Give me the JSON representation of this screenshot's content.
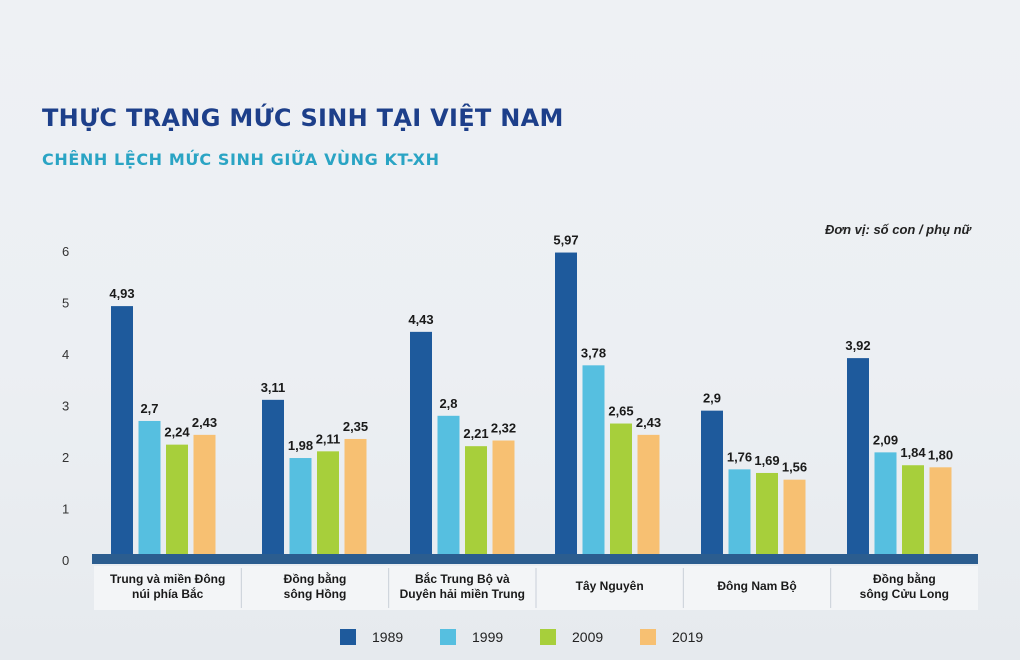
{
  "chart_data": {
    "type": "bar",
    "title": "THỰC TRẠNG MỨC SINH TẠI VIỆT NAM",
    "subtitle": "CHÊNH LỆCH MỨC SINH GIỮA VÙNG KT-XH",
    "unit_label": "Đơn vị: số con / phụ nữ",
    "ylim": [
      0,
      6
    ],
    "yticks": [
      "0",
      "1",
      "2",
      "3",
      "4",
      "5",
      "6"
    ],
    "categories": [
      [
        "Trung và miền Đông",
        "núi phía Bắc"
      ],
      [
        "Đồng bằng",
        "sông Hồng"
      ],
      [
        "Bắc Trung Bộ và",
        "Duyên hải miền Trung"
      ],
      [
        "Tây Nguyên"
      ],
      [
        "Đông Nam Bộ"
      ],
      [
        "Đồng bằng",
        "sông Cửu Long"
      ]
    ],
    "series": [
      {
        "name": "1989",
        "color": "#1e5a9c",
        "values": [
          4.93,
          3.11,
          4.43,
          5.97,
          2.9,
          3.92
        ],
        "labels": [
          "4,93",
          "3,11",
          "4,43",
          "5,97",
          "2,9",
          "3,92"
        ]
      },
      {
        "name": "1999",
        "color": "#56bfe0",
        "values": [
          2.7,
          1.98,
          2.8,
          3.78,
          1.76,
          2.09
        ],
        "labels": [
          "2,7",
          "1,98",
          "2,8",
          "3,78",
          "1,76",
          "2,09"
        ]
      },
      {
        "name": "2009",
        "color": "#a7cf3b",
        "values": [
          2.24,
          2.11,
          2.21,
          2.65,
          1.69,
          1.84
        ],
        "labels": [
          "2,24",
          "2,11",
          "2,21",
          "2,65",
          "1,69",
          "1,84"
        ]
      },
      {
        "name": "2019",
        "color": "#f7c072",
        "values": [
          2.43,
          2.35,
          2.32,
          2.43,
          1.56,
          1.8
        ],
        "labels": [
          "2,43",
          "2,35",
          "2,32",
          "2,43",
          "1,56",
          "1,80"
        ]
      }
    ]
  }
}
